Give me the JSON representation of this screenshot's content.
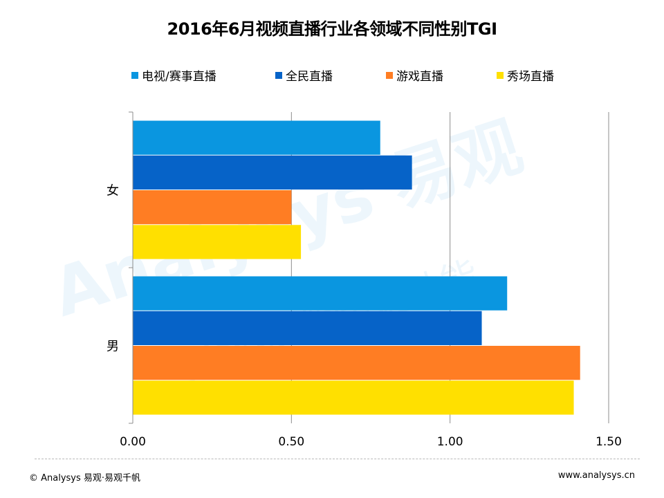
{
  "title": "2016年6月视频直播行业各领域不同性别TGI",
  "legend": [
    {
      "label": "电视/赛事直播",
      "color": "#0A96E0"
    },
    {
      "label": "全民直播",
      "color": "#0663C8"
    },
    {
      "label": "游戏直播",
      "color": "#FF7D23"
    },
    {
      "label": "秀场直播",
      "color": "#FFE000"
    }
  ],
  "chart_data": {
    "type": "bar",
    "orientation": "horizontal",
    "title": "2016年6月视频直播行业各领域不同性别TGI",
    "categories": [
      "女",
      "男"
    ],
    "series": [
      {
        "name": "电视/赛事直播",
        "color": "#0A96E0",
        "values": [
          0.78,
          1.18
        ]
      },
      {
        "name": "全民直播",
        "color": "#0663C8",
        "values": [
          0.88,
          1.1
        ]
      },
      {
        "name": "游戏直播",
        "color": "#FF7D23",
        "values": [
          0.5,
          1.41
        ]
      },
      {
        "name": "秀场直播",
        "color": "#FFE000",
        "values": [
          0.53,
          1.39
        ]
      }
    ],
    "xlim": [
      0,
      1.5
    ],
    "xticks": [
      "0.00",
      "0.50",
      "1.00",
      "1.50"
    ],
    "grid": "vertical",
    "legend_position": "top"
  },
  "watermark": {
    "brand": "Analysys 易观",
    "slogan": "指数级 数字驱动能"
  },
  "footer": {
    "left": "© Analysys 易观·易观千帆",
    "right": "www.analysys.cn"
  }
}
